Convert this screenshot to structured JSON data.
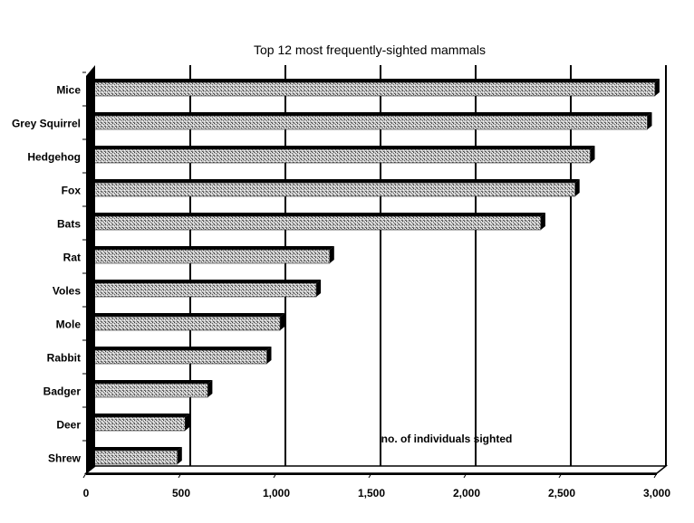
{
  "chart_data": {
    "type": "bar",
    "orientation": "horizontal",
    "title": "Top 12 most frequently-sighted mammals",
    "xlabel": "",
    "ylabel": "",
    "annotation": "no. of individuals sighted",
    "categories": [
      "Mice",
      "Grey Squirrel",
      "Hedgehog",
      "Fox",
      "Bats",
      "Rat",
      "Voles",
      "Mole",
      "Rabbit",
      "Badger",
      "Deer",
      "Shrew"
    ],
    "values": [
      2990,
      2950,
      2650,
      2570,
      2390,
      1280,
      1210,
      1020,
      950,
      640,
      520,
      480
    ],
    "xlim": [
      0,
      3000
    ],
    "xticks": [
      0,
      500,
      1000,
      1500,
      2000,
      2500,
      3000
    ],
    "xtick_labels": [
      "0",
      "500",
      "1,000",
      "1,500",
      "2,000",
      "2,500",
      "3,000"
    ],
    "grid": true,
    "legend": "none",
    "bar_color": "#9a9a9a",
    "shadow_color": "#000000"
  }
}
